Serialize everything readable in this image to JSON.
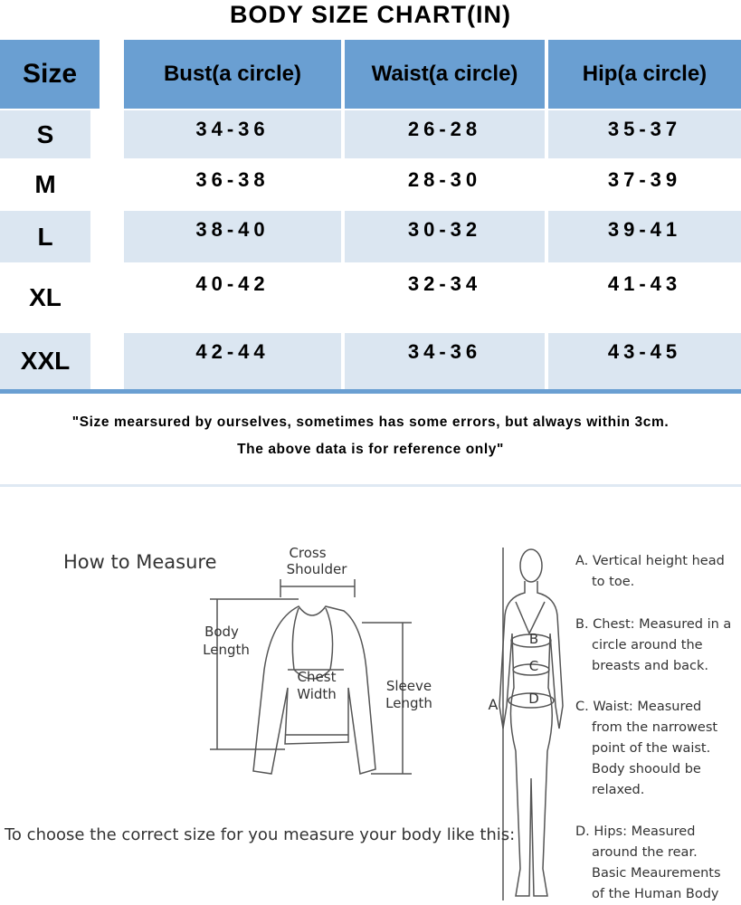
{
  "title": "BODY SIZE CHART(IN)",
  "table": {
    "columns": [
      "Size",
      "Bust(a circle)",
      "Waist(a circle)",
      "Hip(a circle)"
    ],
    "rows": [
      [
        "S",
        "34-36",
        "26-28",
        "35-37"
      ],
      [
        "M",
        "36-38",
        "28-30",
        "37-39"
      ],
      [
        "L",
        "38-40",
        "30-32",
        "39-41"
      ],
      [
        "XL",
        "40-42",
        "32-34",
        "41-43"
      ],
      [
        "XXL",
        "42-44",
        "34-36",
        "43-45"
      ]
    ]
  },
  "note": [
    "\"Size mearsured by ourselves, sometimes has some errors, but always within 3cm.",
    "The above data is for reference only\""
  ],
  "measure": {
    "heading": "How to Measure",
    "garment_labels": [
      [
        "Cross",
        "Shoulder"
      ],
      [
        "Body",
        "Length"
      ],
      [
        "Chest",
        "Width"
      ],
      [
        "Sleeve",
        "Length"
      ]
    ],
    "body_letters": [
      "A",
      "B",
      "C",
      "D"
    ],
    "instruction": "To choose the correct size for you measure your body like this:",
    "legend": [
      [
        "A. Vertical height head",
        "to toe."
      ],
      [
        "B. Chest: Measured in a",
        "circle around the",
        "breasts and back."
      ],
      [
        "C. Waist: Measured",
        "from the narrowest",
        "point of the waist.",
        "Body shoould be",
        "relaxed."
      ],
      [
        "D. Hips: Measured",
        "around the rear.",
        "Basic Meaurements",
        "of the Human Body"
      ]
    ]
  }
}
